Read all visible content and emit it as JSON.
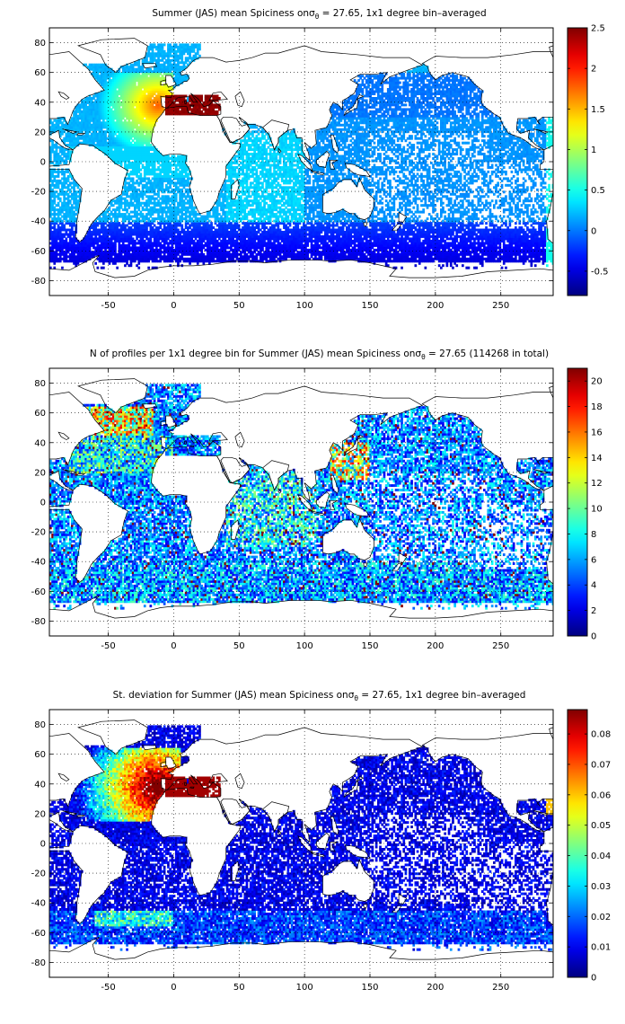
{
  "figure": {
    "panels": [
      {
        "id": "mean",
        "title": "Summer (JAS) mean Spiciness onσθ = 27.65, 1x1 degree bin–averaged",
        "title_pre": "Summer (JAS) mean Spiciness on",
        "title_sym": "σ",
        "title_sub": "θ",
        "title_post": " = 27.65, 1x1 degree bin–averaged",
        "colormap": "jet",
        "colorbar_ticks": [
          "2.5",
          "2",
          "1.5",
          "1",
          "0.5",
          "0",
          "-0.5"
        ],
        "colorbar_range": [
          -0.8,
          2.5
        ],
        "colorbar_tick_values": [
          2.5,
          2,
          1.5,
          1,
          0.5,
          0,
          -0.5
        ],
        "field": "mean_spiciness"
      },
      {
        "id": "count",
        "title": "N of profiles per 1x1 degree bin for Summer (JAS) mean Spiciness onσθ = 27.65 (114268 in total)",
        "title_pre": "N of profiles per 1x1 degree bin for Summer (JAS) mean Spiciness on",
        "title_sym": "σ",
        "title_sub": "θ",
        "title_post": " = 27.65 (114268 in total)",
        "colormap": "jet",
        "colorbar_ticks": [
          "20",
          "18",
          "16",
          "14",
          "12",
          "10",
          "8",
          "6",
          "4",
          "2",
          "0"
        ],
        "colorbar_range": [
          0,
          21
        ],
        "colorbar_tick_values": [
          20,
          18,
          16,
          14,
          12,
          10,
          8,
          6,
          4,
          2,
          0
        ],
        "field": "profile_count"
      },
      {
        "id": "std",
        "title": "St. deviation for Summer (JAS) mean Spiciness onσθ = 27.65, 1x1 degree bin–averaged",
        "title_pre": "St. deviation for Summer (JAS) mean Spiciness on",
        "title_sym": "σ",
        "title_sub": "θ",
        "title_post": " = 27.65, 1x1 degree bin–averaged",
        "colormap": "jet",
        "colorbar_ticks": [
          "0.08",
          "0.07",
          "0.06",
          "0.05",
          "0.04",
          "0.03",
          "0.02",
          "0.01",
          "0"
        ],
        "colorbar_range": [
          0,
          0.088
        ],
        "colorbar_tick_values": [
          0.08,
          0.07,
          0.06,
          0.05,
          0.04,
          0.03,
          0.02,
          0.01,
          0
        ],
        "field": "spiciness_std"
      }
    ],
    "x_axis": {
      "range": [
        -95,
        290
      ],
      "ticks": [
        -50,
        0,
        50,
        100,
        150,
        200,
        250
      ],
      "tick_labels": [
        "-50",
        "0",
        "50",
        "100",
        "150",
        "200",
        "250"
      ]
    },
    "y_axis": {
      "range": [
        -90,
        90
      ],
      "ticks": [
        80,
        60,
        40,
        20,
        0,
        -20,
        -40,
        -60,
        -80
      ],
      "tick_labels": [
        "80",
        "60",
        "40",
        "20",
        "0",
        "-20",
        "-40",
        "-60",
        "-80"
      ]
    },
    "grid": "dotted",
    "land_color": "#ffffff",
    "coastline_color": "#000000"
  }
}
